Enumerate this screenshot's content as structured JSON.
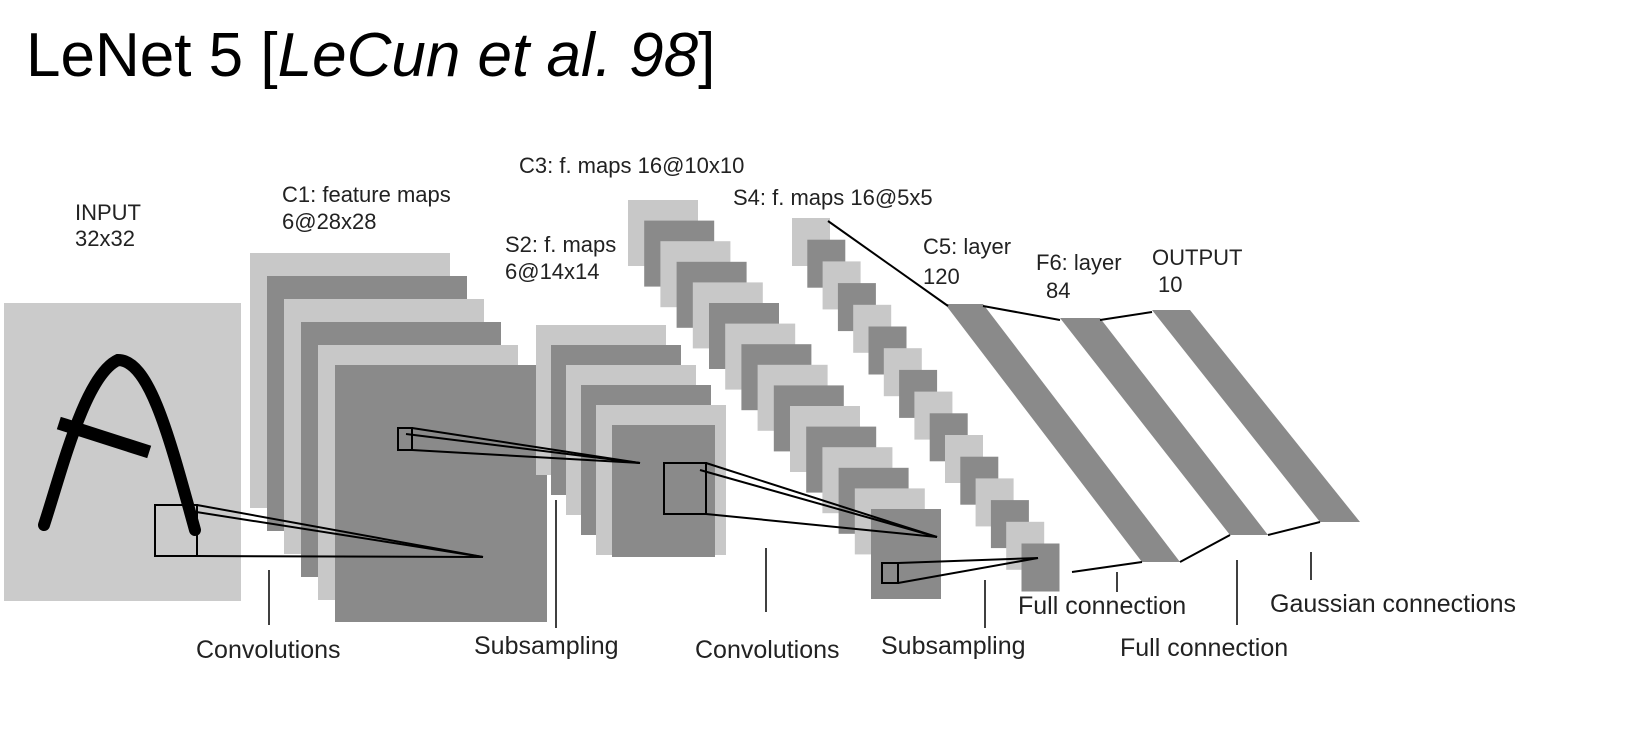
{
  "title": {
    "main": "LeNet 5 [",
    "citation": "LeCun et al. 98",
    "close": "]"
  },
  "layers": [
    {
      "id": "input",
      "line1": "INPUT",
      "line2": "32x32"
    },
    {
      "id": "c1",
      "line1": "C1: feature maps",
      "line2": "6@28x28"
    },
    {
      "id": "s2",
      "line1": "S2: f. maps",
      "line2": "6@14x14"
    },
    {
      "id": "c3",
      "line1": "C3: f. maps 16@10x10",
      "line2": ""
    },
    {
      "id": "s4",
      "line1": "S4: f. maps 16@5x5",
      "line2": ""
    },
    {
      "id": "c5",
      "line1": "C5: layer",
      "line2": "120"
    },
    {
      "id": "f6",
      "line1": "F6: layer",
      "line2": "84"
    },
    {
      "id": "output",
      "line1": "OUTPUT",
      "line2": "10"
    }
  ],
  "operations": [
    "Convolutions",
    "Subsampling",
    "Convolutions",
    "Subsampling",
    "Full connection",
    "Full connection",
    "Gaussian connections"
  ],
  "colors": {
    "light_map": "#c8c8c8",
    "dark_map": "#8a8a8a",
    "input_bg": "#cbcbcb",
    "ink": "#000000"
  }
}
